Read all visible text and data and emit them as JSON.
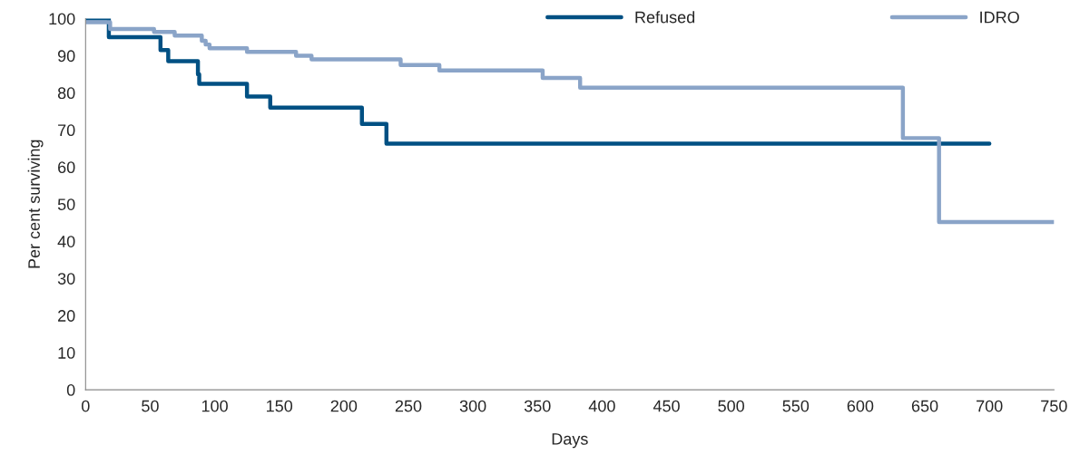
{
  "chart_data": {
    "type": "step",
    "xlabel": "Days",
    "ylabel": "Per cent surviving",
    "xlim": [
      0,
      750
    ],
    "ylim": [
      0,
      100
    ],
    "xticks": [
      0,
      50,
      100,
      150,
      200,
      250,
      300,
      350,
      400,
      450,
      500,
      550,
      600,
      650,
      700,
      750
    ],
    "yticks": [
      0,
      10,
      20,
      30,
      40,
      50,
      60,
      70,
      80,
      90,
      100
    ],
    "legend": "top right",
    "grid": false,
    "line_style": "solid",
    "marker": "none",
    "series": [
      {
        "name": "Refused",
        "color": "#005083",
        "x": [
          0,
          18,
          58,
          64,
          87,
          88,
          125,
          143,
          214,
          233,
          700
        ],
        "values": [
          100,
          95,
          91.5,
          88.5,
          85,
          82.4,
          79,
          76,
          71.6,
          66.3,
          66.3
        ]
      },
      {
        "name": "IDRO",
        "color": "#8aa4c8",
        "x": [
          0,
          19,
          53,
          69,
          90,
          93,
          96,
          125,
          163,
          175,
          244,
          274,
          354,
          383,
          633,
          661,
          750
        ],
        "values": [
          99,
          97.2,
          96.4,
          95.4,
          94,
          93,
          92,
          91,
          90,
          89,
          87.5,
          86,
          84,
          81.4,
          67.8,
          45.2,
          45.2
        ]
      }
    ]
  }
}
